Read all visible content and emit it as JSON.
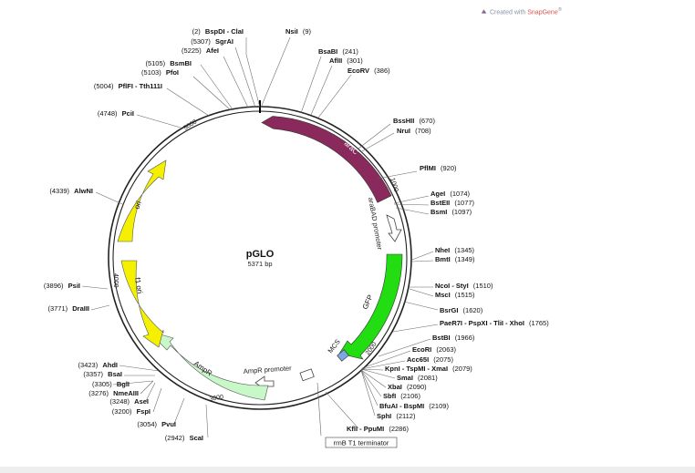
{
  "credit": {
    "prefix": "Created with",
    "brand": "SnapGene",
    "mark": "®"
  },
  "plasmid": {
    "name": "pGLO",
    "size": "5371 bp"
  },
  "ticks": [
    "1000",
    "2000",
    "3000",
    "4000",
    "5000"
  ],
  "features": [
    {
      "label": "araC"
    },
    {
      "label": "araBAD promoter"
    },
    {
      "label": "GFP"
    },
    {
      "label": "MCS"
    },
    {
      "label": "rrnB T1 terminator"
    },
    {
      "label": "AmpR promoter"
    },
    {
      "label": "AmpR"
    },
    {
      "label": "f1 ori"
    },
    {
      "label": "ori"
    }
  ],
  "sites": [
    {
      "pos": "(2)",
      "name": "BspDI - ClaI"
    },
    {
      "pos": "",
      "name": "NsiI",
      "num": "(9)"
    },
    {
      "pos": "(5307)",
      "name": "SgrAI"
    },
    {
      "pos": "(5225)",
      "name": "AfeI"
    },
    {
      "pos": "",
      "name": "BsaBI",
      "num": "(241)"
    },
    {
      "pos": "",
      "name": "AflII",
      "num": "(301)"
    },
    {
      "pos": "(5105)",
      "name": "BsmBI"
    },
    {
      "pos": "(5103)",
      "name": "PfoI"
    },
    {
      "pos": "",
      "name": "EcoRV",
      "num": "(386)"
    },
    {
      "pos": "(5004)",
      "name": "PflFI - Tth111I"
    },
    {
      "pos": "(4748)",
      "name": "PciI"
    },
    {
      "pos": "",
      "name": "BssHII",
      "num": "(670)"
    },
    {
      "pos": "",
      "name": "NruI",
      "num": "(708)"
    },
    {
      "pos": "",
      "name": "PflMI",
      "num": "(920)"
    },
    {
      "pos": "",
      "name": "AgeI",
      "num": "(1074)"
    },
    {
      "pos": "",
      "name": "BstEII",
      "num": "(1077)"
    },
    {
      "pos": "",
      "name": "BsmI",
      "num": "(1097)"
    },
    {
      "pos": "(4339)",
      "name": "AlwNI"
    },
    {
      "pos": "",
      "name": "NheI",
      "num": "(1345)"
    },
    {
      "pos": "",
      "name": "BmtI",
      "num": "(1349)"
    },
    {
      "pos": "(3896)",
      "name": "PsiI"
    },
    {
      "pos": "",
      "name": "NcoI - StyI",
      "num": "(1510)"
    },
    {
      "pos": "",
      "name": "MscI",
      "num": "(1515)"
    },
    {
      "pos": "(3771)",
      "name": "DraIII"
    },
    {
      "pos": "",
      "name": "BsrGI",
      "num": "(1620)"
    },
    {
      "pos": "",
      "name": "PaeR7I - PspXI - TliI - XhoI",
      "num": "(1765)"
    },
    {
      "pos": "",
      "name": "BstBI",
      "num": "(1966)"
    },
    {
      "pos": "",
      "name": "EcoRI",
      "num": "(2063)"
    },
    {
      "pos": "",
      "name": "Acc65I",
      "num": "(2075)"
    },
    {
      "pos": "(3423)",
      "name": "AhdI"
    },
    {
      "pos": "",
      "name": "KpnI - TspMI - XmaI",
      "num": "(2079)"
    },
    {
      "pos": "(3357)",
      "name": "BsaI"
    },
    {
      "pos": "",
      "name": "SmaI",
      "num": "(2081)"
    },
    {
      "pos": "(3305)",
      "name": "BglI"
    },
    {
      "pos": "",
      "name": "XbaI",
      "num": "(2090)"
    },
    {
      "pos": "(3276)",
      "name": "NmeAIII"
    },
    {
      "pos": "",
      "name": "SbfI",
      "num": "(2106)"
    },
    {
      "pos": "(3248)",
      "name": "AseI"
    },
    {
      "pos": "",
      "name": "BfuAI - BspMI",
      "num": "(2109)"
    },
    {
      "pos": "(3200)",
      "name": "FspI"
    },
    {
      "pos": "",
      "name": "SphI",
      "num": "(2112)"
    },
    {
      "pos": "(3054)",
      "name": "PvuI"
    },
    {
      "pos": "",
      "name": "KflI - PpuMI",
      "num": "(2286)"
    },
    {
      "pos": "(2942)",
      "name": "ScaI"
    }
  ],
  "colors": {
    "araC": "#8a2a5c",
    "GFP": "#22dd11",
    "ori": "#f5f000",
    "AmpR": "#c8f7c8",
    "MCS": "#7ea6e0",
    "backbone": "#222222",
    "line": "#666666"
  }
}
